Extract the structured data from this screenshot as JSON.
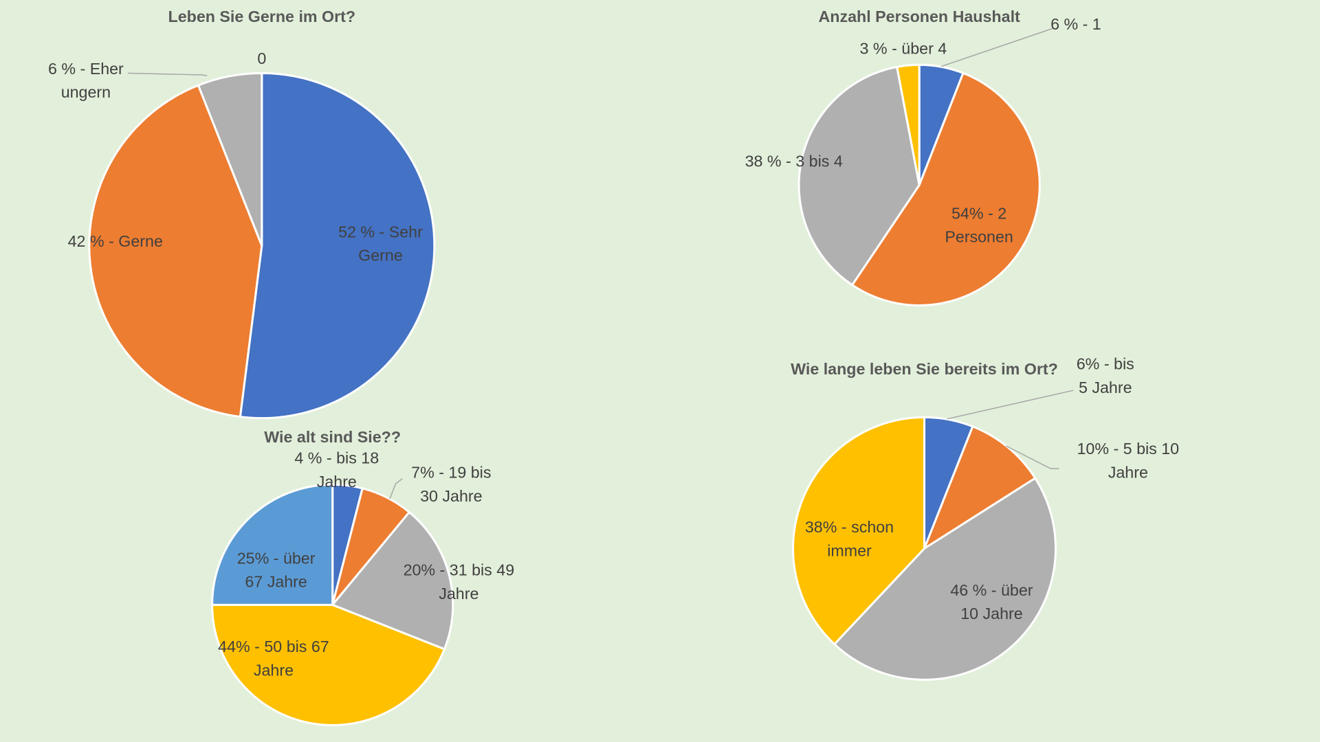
{
  "colors": {
    "blue": "#4472C4",
    "orange": "#ED7D31",
    "gray": "#B0B0B0",
    "yellow": "#FFC000",
    "lightblue": "#5B9BD5",
    "background": "#E2EFDA"
  },
  "chart_data": [
    {
      "type": "pie",
      "title": "Leben Sie Gerne im Ort?",
      "slices": [
        {
          "name": "Sehr Gerne",
          "value": 52,
          "color": "#4472C4",
          "label": [
            "52 % - Sehr",
            "Gerne"
          ]
        },
        {
          "name": "Gerne",
          "value": 42,
          "color": "#ED7D31",
          "label": [
            "42 % - Gerne"
          ]
        },
        {
          "name": "Eher ungern",
          "value": 6,
          "color": "#B0B0B0",
          "label": [
            "6 % - Eher",
            "ungern"
          ]
        },
        {
          "name": "",
          "value": 0,
          "color": "#FFC000",
          "label": [
            "0"
          ]
        }
      ]
    },
    {
      "type": "pie",
      "title": "Anzahl Personen Haushalt",
      "slices": [
        {
          "name": "1",
          "value": 6,
          "color": "#4472C4",
          "label": [
            "6 % - 1"
          ]
        },
        {
          "name": "2 Personen",
          "value": 54,
          "color": "#ED7D31",
          "label": [
            "54% - 2",
            "Personen"
          ]
        },
        {
          "name": "3 bis 4",
          "value": 38,
          "color": "#B0B0B0",
          "label": [
            "38 % - 3 bis 4"
          ]
        },
        {
          "name": "über 4",
          "value": 3,
          "color": "#FFC000",
          "label": [
            "3 % - über 4"
          ]
        }
      ]
    },
    {
      "type": "pie",
      "title": "Wie alt sind Sie??",
      "slices": [
        {
          "name": "bis 18 Jahre",
          "value": 4,
          "color": "#4472C4",
          "label": [
            "4 % - bis 18",
            "Jahre"
          ]
        },
        {
          "name": "19 bis 30 Jahre",
          "value": 7,
          "color": "#ED7D31",
          "label": [
            "7% - 19 bis",
            "30 Jahre"
          ]
        },
        {
          "name": "31 bis 49 Jahre",
          "value": 20,
          "color": "#B0B0B0",
          "label": [
            "20% - 31 bis 49",
            "Jahre"
          ]
        },
        {
          "name": "50 bis 67 Jahre",
          "value": 44,
          "color": "#FFC000",
          "label": [
            "44% - 50 bis 67",
            "Jahre"
          ]
        },
        {
          "name": "über 67 Jahre",
          "value": 25,
          "color": "#5B9BD5",
          "label": [
            "25% - über",
            "67 Jahre"
          ]
        }
      ]
    },
    {
      "type": "pie",
      "title": "Wie lange leben Sie bereits im Ort?",
      "slices": [
        {
          "name": "bis 5 Jahre",
          "value": 6,
          "color": "#4472C4",
          "label": [
            "6% - bis",
            "5 Jahre"
          ]
        },
        {
          "name": "5 bis 10 Jahre",
          "value": 10,
          "color": "#ED7D31",
          "label": [
            "10%  - 5 bis 10",
            "Jahre"
          ]
        },
        {
          "name": "über 10 Jahre",
          "value": 46,
          "color": "#B0B0B0",
          "label": [
            "46 % - über",
            "10 Jahre"
          ]
        },
        {
          "name": "schon immer",
          "value": 38,
          "color": "#FFC000",
          "label": [
            "38% - schon",
            "immer"
          ]
        }
      ]
    }
  ]
}
